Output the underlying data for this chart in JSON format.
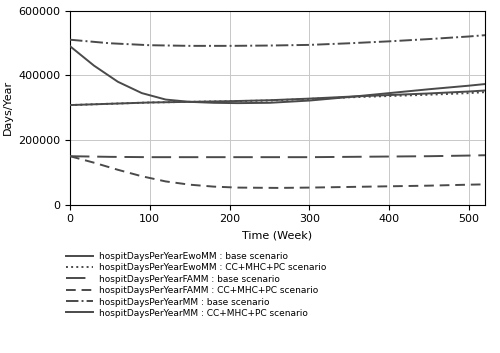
{
  "xlabel": "Time (Week)",
  "ylabel": "Days/Year",
  "xlim": [
    0,
    520
  ],
  "ylim": [
    0,
    600000
  ],
  "xticks": [
    0,
    100,
    200,
    300,
    400,
    500
  ],
  "yticks": [
    0,
    200000,
    400000,
    600000
  ],
  "background_color": "#ffffff",
  "grid_color": "#c8c8c8",
  "line_color": "#4a4a4a",
  "legend_entries": [
    "hospitDaysPerYearEwoMM : base scenario",
    "hospitDaysPerYearEwoMM : CC+MHC+PC scenario",
    "hospitDaysPerYearFAMM : base scenario",
    "hospitDaysPerYearFAMM : CC+MHC+PC scenario",
    "hospitDaysPerYearMM : base scenario",
    "hospitDaysPerYearMM : CC+MHC+PC scenario"
  ],
  "curves": {
    "EwoMM_base": {
      "x": [
        0,
        30,
        60,
        90,
        120,
        150,
        180,
        210,
        250,
        300,
        350,
        400,
        450,
        500,
        520
      ],
      "y": [
        490000,
        430000,
        380000,
        345000,
        325000,
        318000,
        315000,
        314000,
        315000,
        322000,
        333000,
        345000,
        357000,
        368000,
        373000
      ]
    },
    "EwoMM_cc": {
      "x": [
        0,
        50,
        100,
        150,
        200,
        250,
        300,
        350,
        400,
        450,
        500,
        520
      ],
      "y": [
        308000,
        312000,
        316000,
        318000,
        320000,
        322000,
        327000,
        332000,
        336000,
        340000,
        345000,
        348000
      ]
    },
    "FAMM_base": {
      "x": [
        0,
        50,
        100,
        150,
        200,
        250,
        300,
        350,
        400,
        450,
        500,
        520
      ],
      "y": [
        150000,
        148000,
        147000,
        147000,
        147000,
        147000,
        147000,
        148000,
        149000,
        150000,
        152000,
        153000
      ]
    },
    "FAMM_cc": {
      "x": [
        0,
        30,
        60,
        90,
        120,
        150,
        180,
        210,
        260,
        300,
        350,
        400,
        450,
        500,
        520
      ],
      "y": [
        150000,
        130000,
        108000,
        88000,
        72000,
        62000,
        56000,
        53000,
        52000,
        53000,
        55000,
        57000,
        59000,
        62000,
        63000
      ]
    },
    "MM_base": {
      "x": [
        0,
        50,
        100,
        150,
        200,
        250,
        300,
        350,
        400,
        450,
        500,
        520
      ],
      "y": [
        510000,
        499000,
        493000,
        491000,
        491000,
        492000,
        494000,
        499000,
        505000,
        512000,
        520000,
        524000
      ]
    },
    "MM_cc": {
      "x": [
        0,
        50,
        100,
        150,
        200,
        250,
        300,
        350,
        400,
        450,
        500,
        520
      ],
      "y": [
        308000,
        312000,
        316000,
        318000,
        320000,
        323000,
        328000,
        334000,
        339000,
        344000,
        350000,
        353000
      ]
    }
  }
}
